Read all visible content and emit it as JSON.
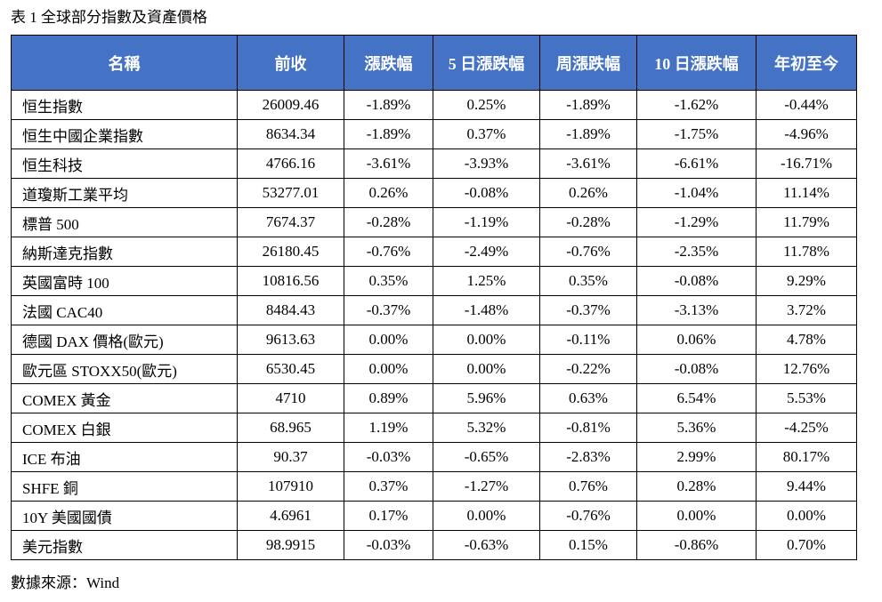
{
  "caption": "表 1 全球部分指數及資產價格",
  "table": {
    "headers": [
      "名稱",
      "前收",
      "漲跌幅",
      "5 日漲跌幅",
      "周漲跌幅",
      "10 日漲跌幅",
      "年初至今"
    ],
    "rows": [
      [
        "恒生指數",
        "26009.46",
        "-1.89%",
        "0.25%",
        "-1.89%",
        "-1.62%",
        "-0.44%"
      ],
      [
        "恒生中國企業指數",
        "8634.34",
        "-1.89%",
        "0.37%",
        "-1.89%",
        "-1.75%",
        "-4.96%"
      ],
      [
        "恒生科技",
        "4766.16",
        "-3.61%",
        "-3.93%",
        "-3.61%",
        "-6.61%",
        "-16.71%"
      ],
      [
        "道瓊斯工業平均",
        "53277.01",
        "0.26%",
        "-0.08%",
        "0.26%",
        "-1.04%",
        "11.14%"
      ],
      [
        "標普 500",
        "7674.37",
        "-0.28%",
        "-1.19%",
        "-0.28%",
        "-1.29%",
        "11.79%"
      ],
      [
        "納斯達克指數",
        "26180.45",
        "-0.76%",
        "-2.49%",
        "-0.76%",
        "-2.35%",
        "11.78%"
      ],
      [
        "英國富時 100",
        "10816.56",
        "0.35%",
        "1.25%",
        "0.35%",
        "-0.08%",
        "9.29%"
      ],
      [
        "法國 CAC40",
        "8484.43",
        "-0.37%",
        "-1.48%",
        "-0.37%",
        "-3.13%",
        "3.72%"
      ],
      [
        "德國 DAX 價格(歐元)",
        "9613.63",
        "0.00%",
        "0.00%",
        "-0.11%",
        "0.06%",
        "4.78%"
      ],
      [
        "歐元區 STOXX50(歐元)",
        "6530.45",
        "0.00%",
        "0.00%",
        "-0.22%",
        "-0.08%",
        "12.76%"
      ],
      [
        "COMEX 黃金",
        "4710",
        "0.89%",
        "5.96%",
        "0.63%",
        "6.54%",
        "5.53%"
      ],
      [
        "COMEX 白銀",
        "68.965",
        "1.19%",
        "5.32%",
        "-0.81%",
        "5.36%",
        "-4.25%"
      ],
      [
        "ICE 布油",
        "90.37",
        "-0.03%",
        "-0.65%",
        "-2.83%",
        "2.99%",
        "80.17%"
      ],
      [
        "SHFE 銅",
        "107910",
        "0.37%",
        "-1.27%",
        "0.76%",
        "0.28%",
        "9.44%"
      ],
      [
        "10Y 美國國債",
        "4.6961",
        "0.17%",
        "0.00%",
        "-0.76%",
        "0.00%",
        "0.00%"
      ],
      [
        "美元指數",
        "98.9915",
        "-0.03%",
        "-0.63%",
        "0.15%",
        "-0.86%",
        "0.70%"
      ]
    ]
  },
  "source": "數據來源：Wind",
  "colors": {
    "header_background": "#4472c4",
    "header_text": "#ffffff",
    "border": "#000000"
  }
}
